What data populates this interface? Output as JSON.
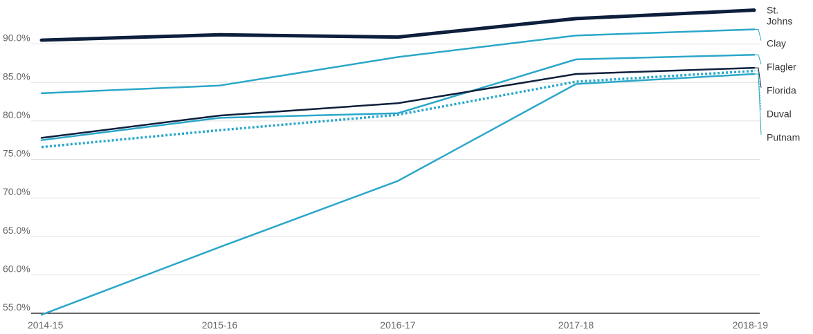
{
  "chart_data": {
    "type": "line",
    "categories": [
      "2014-15",
      "2015-16",
      "2016-17",
      "2017-18",
      "2018-19"
    ],
    "y_ticks": [
      "55.0%",
      "60.0%",
      "65.0%",
      "70.0%",
      "75.0%",
      "80.0%",
      "85.0%",
      "90.0%"
    ],
    "ylim": [
      55,
      95
    ],
    "grid": true,
    "legend": "labels at right end of each line",
    "series": [
      {
        "name": "St. Johns",
        "label_lines": [
          "St.",
          "Johns"
        ],
        "values": [
          90.5,
          91.2,
          90.9,
          93.3,
          94.4
        ],
        "color": "#0d1f3c",
        "style": "solid",
        "weight": "heavy"
      },
      {
        "name": "Clay",
        "label_lines": [
          "Clay"
        ],
        "values": [
          83.6,
          84.6,
          88.3,
          91.1,
          91.9
        ],
        "color": "#2aa7c9",
        "style": "solid",
        "weight": "normal"
      },
      {
        "name": "Flagler",
        "label_lines": [
          "Flagler"
        ],
        "values": [
          77.5,
          80.4,
          81.0,
          88.0,
          88.6
        ],
        "color": "#2aa7c9",
        "style": "solid",
        "weight": "normal"
      },
      {
        "name": "Florida",
        "label_lines": [
          "Florida"
        ],
        "values": [
          77.8,
          80.7,
          82.3,
          86.1,
          86.9
        ],
        "color": "#0d1f3c",
        "style": "solid",
        "weight": "normal"
      },
      {
        "name": "Duval",
        "label_lines": [
          "Duval"
        ],
        "values": [
          76.6,
          78.8,
          80.8,
          85.1,
          86.5
        ],
        "color": "#2aa7c9",
        "style": "dotted",
        "weight": "normal"
      },
      {
        "name": "Putnam",
        "label_lines": [
          "Putnam"
        ],
        "values": [
          54.8,
          63.6,
          72.2,
          84.8,
          86.1
        ],
        "color": "#2aa7c9",
        "style": "solid",
        "weight": "normal"
      }
    ]
  }
}
